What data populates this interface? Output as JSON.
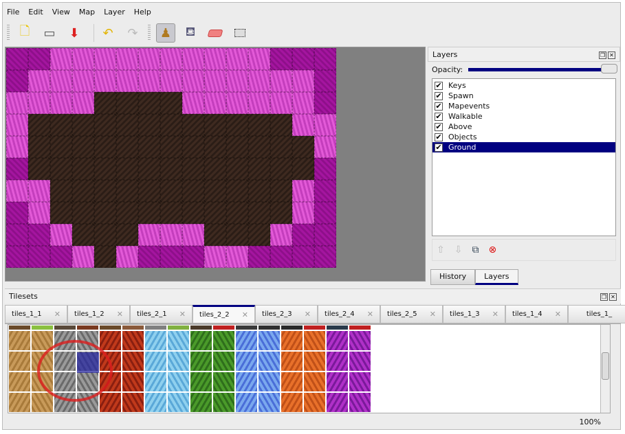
{
  "menu": [
    "File",
    "Edit",
    "View",
    "Map",
    "Layer",
    "Help"
  ],
  "toolbar": {
    "icons": [
      "new-document-icon",
      "open-folder-icon",
      "save-icon",
      "undo-icon",
      "redo-icon",
      "stamp-brush-icon",
      "bucket-fill-icon",
      "eraser-icon",
      "rectangle-select-icon"
    ],
    "active": "stamp-brush-icon"
  },
  "layers_panel": {
    "title": "Layers",
    "opacity_label": "Opacity:",
    "opacity": 1.0,
    "layers": [
      {
        "name": "Keys",
        "visible": true
      },
      {
        "name": "Spawn",
        "visible": true
      },
      {
        "name": "Mapevents",
        "visible": true
      },
      {
        "name": "Walkable",
        "visible": true
      },
      {
        "name": "Above",
        "visible": true
      },
      {
        "name": "Objects",
        "visible": true
      },
      {
        "name": "Ground",
        "visible": true,
        "selected": true
      }
    ],
    "check": "✔",
    "tabs": [
      "History",
      "Layers"
    ],
    "active_tab": "Layers"
  },
  "tilesets": {
    "title": "Tilesets",
    "tabs": [
      "tiles_1_1",
      "tiles_1_2",
      "tiles_2_1",
      "tiles_2_2",
      "tiles_2_3",
      "tiles_2_4",
      "tiles_2_5",
      "tiles_1_3",
      "tiles_1_4",
      "tiles_1_"
    ],
    "active_tab": "tiles_2_2",
    "close": "✕"
  },
  "status": {
    "zoom": "100%"
  },
  "colors": {
    "accent": "#000080",
    "purple": "#a4159f",
    "pink": "#e35ad8",
    "dirt": "#3e2a20"
  }
}
